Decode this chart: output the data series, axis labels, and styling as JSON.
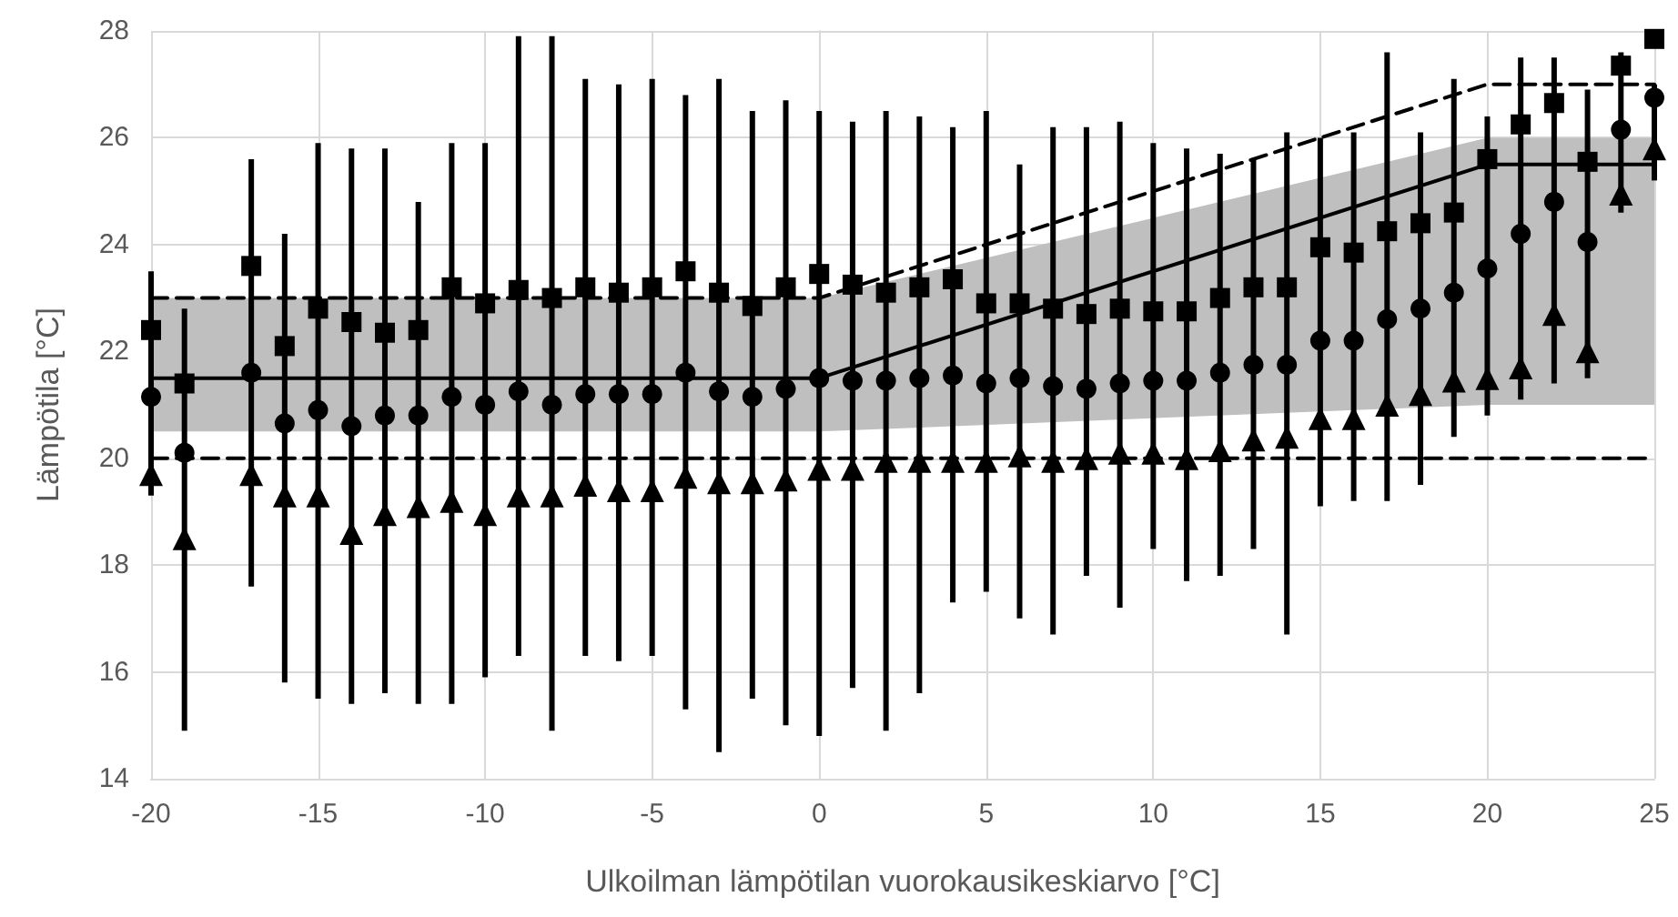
{
  "chart_data": {
    "type": "scatter",
    "xlabel": "Ulkoilman lämpötilan vuorokausikeskiarvo [°C]",
    "ylabel": "Lämpötila [°C]",
    "xlim": [
      -20,
      25
    ],
    "xticks": [
      -20,
      -15,
      -10,
      -5,
      0,
      5,
      10,
      15,
      20,
      25
    ],
    "ylim": [
      14,
      28
    ],
    "yticks": [
      14,
      16,
      18,
      20,
      22,
      24,
      26,
      28
    ],
    "grid": true,
    "series": [
      {
        "type": "bar",
        "color": "#000000",
        "x": [
          -20,
          -19,
          -17,
          -16,
          -15,
          -14,
          -13,
          -12,
          -11,
          -10,
          -9,
          -8,
          -7,
          -6,
          -5,
          -4,
          -3,
          -2,
          -1,
          0,
          1,
          2,
          3,
          4,
          5,
          6,
          7,
          8,
          9,
          10,
          11,
          12,
          13,
          14,
          15,
          16,
          17,
          18,
          19,
          20,
          21,
          22,
          23,
          24,
          25
        ],
        "base": [
          19.3,
          14.9,
          17.6,
          15.8,
          15.5,
          15.4,
          15.6,
          15.4,
          15.4,
          15.9,
          16.3,
          14.9,
          16.3,
          16.2,
          16.3,
          15.3,
          14.5,
          15.5,
          15.0,
          14.8,
          15.7,
          14.9,
          15.6,
          17.3,
          17.5,
          17.0,
          16.7,
          17.8,
          17.2,
          18.3,
          17.7,
          17.8,
          18.3,
          16.7,
          19.1,
          19.2,
          19.2,
          19.5,
          20.4,
          20.8,
          21.1,
          21.4,
          21.5,
          24.6,
          25.2
        ],
        "values": [
          4.2,
          7.9,
          8.0,
          8.4,
          10.4,
          10.4,
          10.2,
          9.4,
          10.5,
          10.0,
          11.6,
          13.0,
          10.8,
          10.8,
          10.8,
          11.5,
          12.6,
          11.0,
          11.7,
          11.7,
          10.6,
          11.6,
          10.8,
          8.9,
          9.0,
          8.5,
          9.5,
          8.4,
          9.1,
          7.6,
          8.1,
          7.9,
          7.3,
          9.4,
          6.9,
          6.9,
          8.4,
          6.6,
          6.7,
          5.6,
          6.4,
          6.1,
          5.4,
          3.0,
          1.8
        ]
      },
      {
        "type": "line",
        "color": "#000000",
        "marker": "none",
        "line_style": "solid",
        "x": [
          -20,
          0,
          20,
          25
        ],
        "values": [
          21.5,
          21.5,
          25.5,
          25.5
        ],
        "lower": [
          20.5,
          20.5,
          21,
          21
        ],
        "upper": [
          23,
          23,
          26,
          26
        ]
      },
      {
        "type": "line",
        "color": "#000000",
        "marker": "none",
        "line_style": "dashed",
        "x": [
          -20,
          0,
          20,
          25
        ],
        "values": [
          23,
          23,
          27,
          27
        ]
      },
      {
        "type": "line",
        "color": "#000000",
        "marker": "none",
        "line_style": "dashed",
        "x": [
          -20,
          25
        ],
        "values": [
          20,
          20
        ]
      },
      {
        "color": "#000000",
        "marker": "square",
        "x": [
          -20,
          -19,
          -17,
          -16,
          -15,
          -14,
          -13,
          -12,
          -11,
          -10,
          -9,
          -8,
          -7,
          -6,
          -5,
          -4,
          -3,
          -2,
          -1,
          0,
          1,
          2,
          3,
          4,
          5,
          6,
          7,
          8,
          9,
          10,
          11,
          12,
          13,
          14,
          15,
          16,
          17,
          18,
          19,
          20,
          21,
          22,
          23,
          24,
          25
        ],
        "values": [
          22.4,
          21.4,
          23.6,
          22.1,
          22.8,
          22.55,
          22.35,
          22.4,
          23.2,
          22.9,
          23.15,
          23.0,
          23.2,
          23.1,
          23.2,
          23.5,
          23.1,
          22.85,
          23.2,
          23.45,
          23.25,
          23.1,
          23.2,
          23.35,
          22.9,
          22.9,
          22.8,
          22.7,
          22.8,
          22.75,
          22.75,
          23.0,
          23.2,
          23.2,
          23.95,
          23.85,
          24.25,
          24.4,
          24.6,
          25.6,
          26.25,
          26.65,
          25.55,
          27.35,
          27.85
        ]
      },
      {
        "color": "#000000",
        "marker": "circle",
        "x": [
          -20,
          -19,
          -17,
          -16,
          -15,
          -14,
          -13,
          -12,
          -11,
          -10,
          -9,
          -8,
          -7,
          -6,
          -5,
          -4,
          -3,
          -2,
          -1,
          0,
          1,
          2,
          3,
          4,
          5,
          6,
          7,
          8,
          9,
          10,
          11,
          12,
          13,
          14,
          15,
          16,
          17,
          18,
          19,
          20,
          21,
          22,
          23,
          24,
          25
        ],
        "values": [
          21.15,
          20.1,
          21.6,
          20.65,
          20.9,
          20.6,
          20.8,
          20.8,
          21.15,
          21.0,
          21.25,
          21.0,
          21.2,
          21.2,
          21.2,
          21.6,
          21.25,
          21.15,
          21.3,
          21.5,
          21.45,
          21.45,
          21.5,
          21.55,
          21.4,
          21.5,
          21.35,
          21.3,
          21.4,
          21.45,
          21.45,
          21.6,
          21.75,
          21.75,
          22.2,
          22.2,
          22.6,
          22.8,
          23.1,
          23.55,
          24.2,
          24.8,
          24.05,
          26.15,
          26.75
        ]
      },
      {
        "color": "#000000",
        "marker": "triangle",
        "x": [
          -20,
          -19,
          -17,
          -16,
          -15,
          -14,
          -13,
          -12,
          -11,
          -10,
          -9,
          -8,
          -7,
          -6,
          -5,
          -4,
          -3,
          -2,
          -1,
          0,
          1,
          2,
          3,
          4,
          5,
          6,
          7,
          8,
          9,
          10,
          11,
          12,
          13,
          14,
          15,
          16,
          17,
          18,
          19,
          20,
          21,
          22,
          23,
          24,
          25
        ],
        "values": [
          19.7,
          18.5,
          19.7,
          19.3,
          19.3,
          18.6,
          18.95,
          19.1,
          19.2,
          18.95,
          19.3,
          19.3,
          19.5,
          19.4,
          19.4,
          19.65,
          19.55,
          19.55,
          19.6,
          19.8,
          19.8,
          19.95,
          19.95,
          19.95,
          19.95,
          20.05,
          19.95,
          20.0,
          20.1,
          20.1,
          20.0,
          20.15,
          20.35,
          20.4,
          20.75,
          20.75,
          21.0,
          21.2,
          21.45,
          21.5,
          21.7,
          22.7,
          22.0,
          24.95,
          25.8
        ]
      }
    ]
  }
}
